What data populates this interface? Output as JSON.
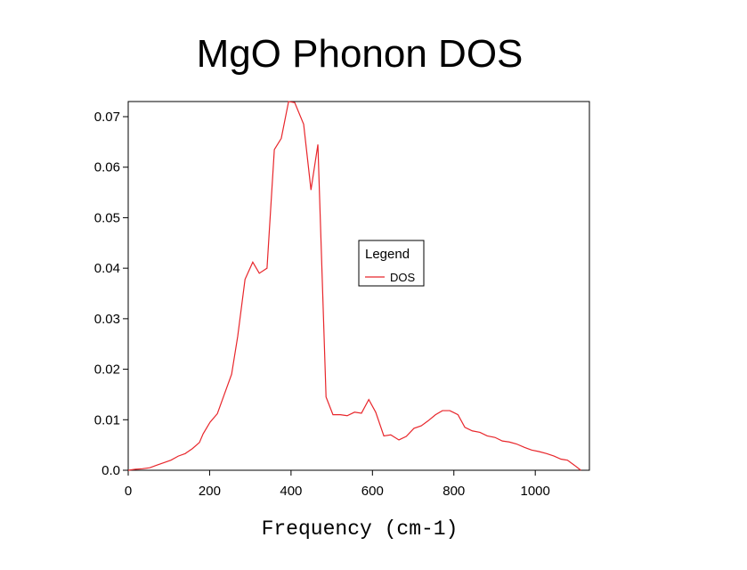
{
  "chart_data": {
    "type": "line",
    "title": "MgO Phonon DOS",
    "x_label": "Frequency (cm-1)",
    "legend_title": "Legend",
    "legend": "upper-middle",
    "xlim": [
      0,
      1133
    ],
    "ylim": [
      0,
      0.073
    ],
    "xticks": [
      0,
      200,
      400,
      600,
      800,
      1000
    ],
    "yticks": [
      {
        "value": 0,
        "label": "0.0"
      },
      0.01,
      0.02,
      0.03,
      0.04,
      0.05,
      0.06,
      0.07
    ],
    "series": [
      {
        "name": "DOS",
        "color": "#e8262b",
        "x": [
          0,
          18,
          35,
          53,
          70,
          88,
          105,
          123,
          140,
          158,
          175,
          184,
          201,
          219,
          236,
          254,
          269,
          287,
          306,
          322,
          341,
          359,
          376,
          394,
          409,
          431,
          449,
          466,
          486,
          503,
          521,
          538,
          556,
          573,
          591,
          608,
          628,
          645,
          665,
          683,
          702,
          720,
          737,
          755,
          772,
          790,
          810,
          827,
          845,
          864,
          882,
          901,
          919,
          936,
          954,
          974,
          991,
          1009,
          1028,
          1046,
          1063,
          1079,
          1096,
          1112
        ],
        "values": [
          0,
          0.0002,
          0.0003,
          0.0005,
          0.001,
          0.0015,
          0.002,
          0.0028,
          0.0033,
          0.0043,
          0.0055,
          0.0072,
          0.0095,
          0.0112,
          0.015,
          0.019,
          0.0265,
          0.0378,
          0.0412,
          0.039,
          0.04,
          0.0635,
          0.0657,
          0.073,
          0.0728,
          0.0685,
          0.0555,
          0.0645,
          0.0145,
          0.011,
          0.011,
          0.0108,
          0.0115,
          0.0113,
          0.014,
          0.0115,
          0.0068,
          0.007,
          0.006,
          0.0067,
          0.0083,
          0.0088,
          0.0098,
          0.011,
          0.0118,
          0.0118,
          0.011,
          0.0085,
          0.0078,
          0.0075,
          0.0068,
          0.0065,
          0.0058,
          0.0056,
          0.0052,
          0.0045,
          0.004,
          0.0037,
          0.0033,
          0.0028,
          0.0022,
          0.002,
          0.001,
          0
        ]
      }
    ]
  }
}
